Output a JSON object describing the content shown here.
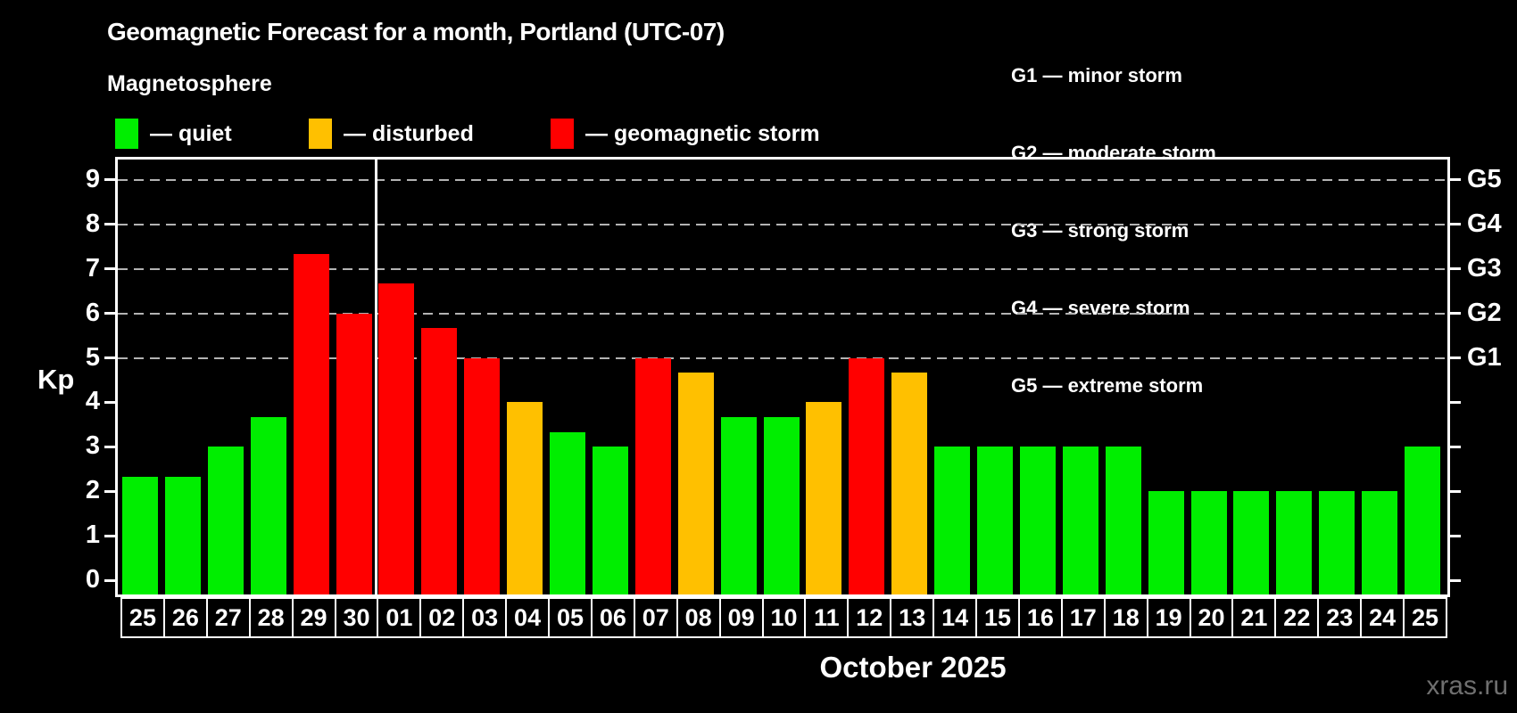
{
  "title": "Geomagnetic Forecast for a month, Portland (UTC-07)",
  "subtitle": "Magnetosphere",
  "legend": {
    "items": [
      {
        "status": "quiet",
        "label": "— quiet"
      },
      {
        "status": "disturbed",
        "label": "— disturbed"
      },
      {
        "status": "storm",
        "label": "— geomagnetic storm"
      }
    ]
  },
  "g_legend": [
    "G1 — minor storm",
    "G2 — moderate storm",
    "G3 — strong storm",
    "G4 — severe storm",
    "G5 — extreme storm"
  ],
  "axis": {
    "kp_label": "Kp"
  },
  "xlabel": "October 2025",
  "watermark": "xras.ru",
  "chart_data": {
    "type": "bar",
    "title": "Geomagnetic Forecast for a month, Portland (UTC-07)",
    "ylabel": "Kp",
    "xlabel": "October 2025",
    "ylim": [
      0,
      9
    ],
    "yticks": [
      0,
      1,
      2,
      3,
      4,
      5,
      6,
      7,
      8,
      9
    ],
    "gridlines_at": [
      5,
      6,
      7,
      8,
      9
    ],
    "grid_style": "dashed",
    "right_axis_labels": [
      {
        "kp": 5,
        "label": "G1"
      },
      {
        "kp": 6,
        "label": "G2"
      },
      {
        "kp": 7,
        "label": "G3"
      },
      {
        "kp": 8,
        "label": "G4"
      },
      {
        "kp": 9,
        "label": "G5"
      }
    ],
    "month_separator_after_index": 5,
    "categories": [
      "25",
      "26",
      "27",
      "28",
      "29",
      "30",
      "01",
      "02",
      "03",
      "04",
      "05",
      "06",
      "07",
      "08",
      "09",
      "10",
      "11",
      "12",
      "13",
      "14",
      "15",
      "16",
      "17",
      "18",
      "19",
      "20",
      "21",
      "22",
      "23",
      "24",
      "25"
    ],
    "values": [
      2.33,
      2.33,
      3.0,
      3.67,
      7.33,
      6.0,
      6.67,
      5.67,
      5.0,
      4.0,
      3.33,
      3.0,
      5.0,
      4.67,
      3.67,
      3.67,
      4.0,
      5.0,
      4.67,
      3.0,
      3.0,
      3.0,
      3.0,
      3.0,
      2.0,
      2.0,
      2.0,
      2.0,
      2.0,
      2.0,
      3.0
    ],
    "statuses": [
      "quiet",
      "quiet",
      "quiet",
      "quiet",
      "storm",
      "storm",
      "storm",
      "storm",
      "storm",
      "disturbed",
      "quiet",
      "quiet",
      "storm",
      "disturbed",
      "quiet",
      "quiet",
      "disturbed",
      "storm",
      "disturbed",
      "quiet",
      "quiet",
      "quiet",
      "quiet",
      "quiet",
      "quiet",
      "quiet",
      "quiet",
      "quiet",
      "quiet",
      "quiet",
      "quiet"
    ],
    "status_colors": {
      "quiet": "#00ee00",
      "disturbed": "#ffc000",
      "storm": "#ff0000"
    },
    "frame_color": "#ffffff",
    "gridline_color": "#b3b3b3",
    "background": "#000000"
  }
}
